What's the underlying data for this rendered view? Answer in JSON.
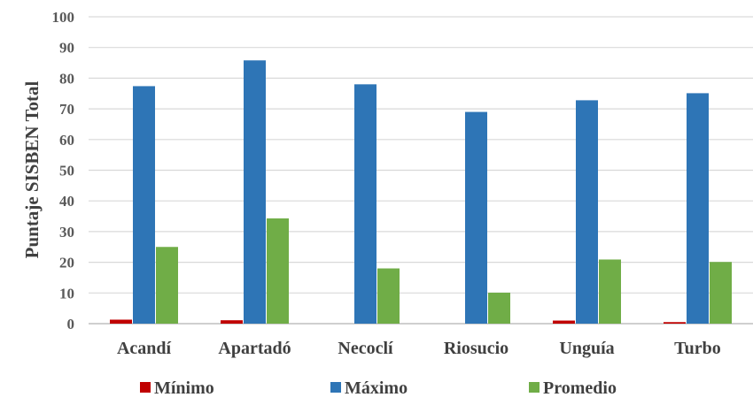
{
  "chart_data": {
    "type": "bar",
    "title": "",
    "xlabel": "",
    "ylabel": "Puntaje SISBEN Total",
    "ylim": [
      0,
      100
    ],
    "yticks": [
      0,
      10,
      20,
      30,
      40,
      50,
      60,
      70,
      80,
      90,
      100
    ],
    "grid": true,
    "legend_position": "bottom",
    "categories": [
      "Acandí",
      "Apartadó",
      "Necoclí",
      "Riosucio",
      "Unguía",
      "Turbo"
    ],
    "series": [
      {
        "name": "Mínimo",
        "color": "#c00000",
        "values": [
          1.3,
          1.1,
          0,
          0,
          1.0,
          0.5
        ]
      },
      {
        "name": "Máximo",
        "color": "#2e75b6",
        "values": [
          77.4,
          85.8,
          78.0,
          69.0,
          72.8,
          75.1
        ]
      },
      {
        "name": "Promedio",
        "color": "#70ad47",
        "values": [
          25.0,
          34.3,
          18.0,
          10.1,
          20.9,
          20.1
        ]
      }
    ]
  }
}
